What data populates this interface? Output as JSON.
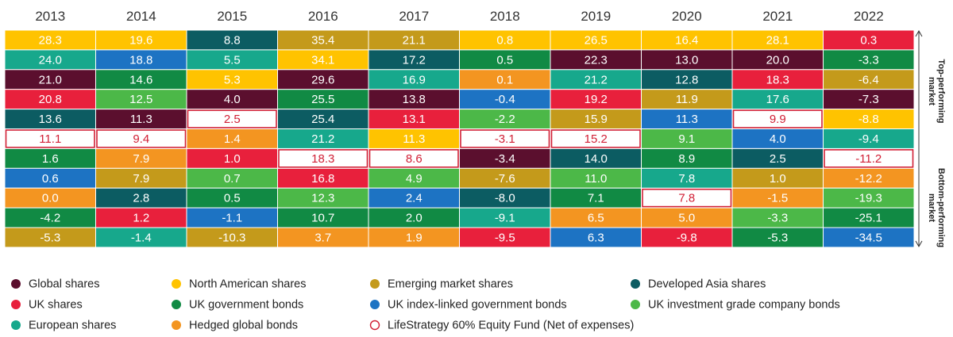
{
  "colors": {
    "global": "#5b0f2e",
    "na": "#ffc300",
    "em": "#c49a1b",
    "dasia": "#0c5c62",
    "uk": "#e8203c",
    "ukgov": "#118a44",
    "ukil": "#1d73c3",
    "ukig": "#4cb848",
    "eu": "#17a88c",
    "hedged": "#f39521",
    "fund": "#ffffff",
    "fund_border": "#d11f35"
  },
  "chart_data": {
    "type": "table",
    "title": "",
    "side_labels": {
      "top": "Top-performing market",
      "bottom": "Bottom-performing market"
    },
    "years": [
      "2013",
      "2014",
      "2015",
      "2016",
      "2017",
      "2018",
      "2019",
      "2020",
      "2021",
      "2022"
    ],
    "legend": [
      {
        "key": "global",
        "label": "Global shares",
        "symbol": "dot"
      },
      {
        "key": "na",
        "label": "North American shares",
        "symbol": "dot"
      },
      {
        "key": "em",
        "label": "Emerging market shares",
        "symbol": "dot"
      },
      {
        "key": "dasia",
        "label": "Developed Asia shares",
        "symbol": "dot"
      },
      {
        "key": "uk",
        "label": "UK shares",
        "symbol": "dot"
      },
      {
        "key": "ukgov",
        "label": "UK government bonds",
        "symbol": "dot"
      },
      {
        "key": "ukil",
        "label": "UK index-linked government bonds",
        "symbol": "dot"
      },
      {
        "key": "ukig",
        "label": "UK investment grade company bonds",
        "symbol": "dot"
      },
      {
        "key": "eu",
        "label": "European shares",
        "symbol": "dot"
      },
      {
        "key": "hedged",
        "label": "Hedged global bonds",
        "symbol": "dot"
      },
      {
        "key": "fund",
        "label": "LifeStrategy 60% Equity Fund (Net of expenses)",
        "symbol": "ring"
      }
    ],
    "columns": [
      {
        "year": "2013",
        "cells": [
          {
            "v": "28.3",
            "k": "na"
          },
          {
            "v": "24.0",
            "k": "eu"
          },
          {
            "v": "21.0",
            "k": "global"
          },
          {
            "v": "20.8",
            "k": "uk"
          },
          {
            "v": "13.6",
            "k": "dasia"
          },
          {
            "v": "11.1",
            "k": "fund"
          },
          {
            "v": "1.6",
            "k": "ukgov"
          },
          {
            "v": "0.6",
            "k": "ukil"
          },
          {
            "v": "0.0",
            "k": "hedged"
          },
          {
            "v": "-4.2",
            "k": "ukgov"
          },
          {
            "v": "-5.3",
            "k": "em"
          }
        ]
      },
      {
        "year": "2014",
        "cells": [
          {
            "v": "19.6",
            "k": "na"
          },
          {
            "v": "18.8",
            "k": "ukil"
          },
          {
            "v": "14.6",
            "k": "ukgov"
          },
          {
            "v": "12.5",
            "k": "ukig"
          },
          {
            "v": "11.3",
            "k": "global"
          },
          {
            "v": "9.4",
            "k": "fund"
          },
          {
            "v": "7.9",
            "k": "hedged"
          },
          {
            "v": "7.9",
            "k": "em"
          },
          {
            "v": "2.8",
            "k": "dasia"
          },
          {
            "v": "1.2",
            "k": "uk"
          },
          {
            "v": "-1.4",
            "k": "eu"
          }
        ]
      },
      {
        "year": "2015",
        "cells": [
          {
            "v": "8.8",
            "k": "dasia"
          },
          {
            "v": "5.5",
            "k": "eu"
          },
          {
            "v": "5.3",
            "k": "na"
          },
          {
            "v": "4.0",
            "k": "global"
          },
          {
            "v": "2.5",
            "k": "fund"
          },
          {
            "v": "1.4",
            "k": "hedged"
          },
          {
            "v": "1.0",
            "k": "uk"
          },
          {
            "v": "0.7",
            "k": "ukig"
          },
          {
            "v": "0.5",
            "k": "ukgov"
          },
          {
            "v": "-1.1",
            "k": "ukil"
          },
          {
            "v": "-10.3",
            "k": "em"
          }
        ]
      },
      {
        "year": "2016",
        "cells": [
          {
            "v": "35.4",
            "k": "em"
          },
          {
            "v": "34.1",
            "k": "na"
          },
          {
            "v": "29.6",
            "k": "global"
          },
          {
            "v": "25.5",
            "k": "ukgov"
          },
          {
            "v": "25.4",
            "k": "dasia"
          },
          {
            "v": "21.2",
            "k": "eu"
          },
          {
            "v": "18.3",
            "k": "fund"
          },
          {
            "v": "16.8",
            "k": "uk"
          },
          {
            "v": "12.3",
            "k": "ukig"
          },
          {
            "v": "10.7",
            "k": "ukgov"
          },
          {
            "v": "3.7",
            "k": "hedged"
          }
        ]
      },
      {
        "year": "2017",
        "cells": [
          {
            "v": "21.1",
            "k": "em"
          },
          {
            "v": "17.2",
            "k": "dasia"
          },
          {
            "v": "16.9",
            "k": "eu"
          },
          {
            "v": "13.8",
            "k": "global"
          },
          {
            "v": "13.1",
            "k": "uk"
          },
          {
            "v": "11.3",
            "k": "na"
          },
          {
            "v": "8.6",
            "k": "fund"
          },
          {
            "v": "4.9",
            "k": "ukig"
          },
          {
            "v": "2.4",
            "k": "ukil"
          },
          {
            "v": "2.0",
            "k": "ukgov"
          },
          {
            "v": "1.9",
            "k": "hedged"
          }
        ]
      },
      {
        "year": "2018",
        "cells": [
          {
            "v": "0.8",
            "k": "na"
          },
          {
            "v": "0.5",
            "k": "ukgov"
          },
          {
            "v": "0.1",
            "k": "hedged"
          },
          {
            "v": "-0.4",
            "k": "ukil"
          },
          {
            "v": "-2.2",
            "k": "ukig"
          },
          {
            "v": "-3.1",
            "k": "fund"
          },
          {
            "v": "-3.4",
            "k": "global"
          },
          {
            "v": "-7.6",
            "k": "em"
          },
          {
            "v": "-8.0",
            "k": "dasia"
          },
          {
            "v": "-9.1",
            "k": "eu"
          },
          {
            "v": "-9.5",
            "k": "uk"
          }
        ]
      },
      {
        "year": "2019",
        "cells": [
          {
            "v": "26.5",
            "k": "na"
          },
          {
            "v": "22.3",
            "k": "global"
          },
          {
            "v": "21.2",
            "k": "eu"
          },
          {
            "v": "19.2",
            "k": "uk"
          },
          {
            "v": "15.9",
            "k": "em"
          },
          {
            "v": "15.2",
            "k": "fund"
          },
          {
            "v": "14.0",
            "k": "dasia"
          },
          {
            "v": "11.0",
            "k": "ukig"
          },
          {
            "v": "7.1",
            "k": "ukgov"
          },
          {
            "v": "6.5",
            "k": "hedged"
          },
          {
            "v": "6.3",
            "k": "ukil"
          }
        ]
      },
      {
        "year": "2020",
        "cells": [
          {
            "v": "16.4",
            "k": "na"
          },
          {
            "v": "13.0",
            "k": "global"
          },
          {
            "v": "12.8",
            "k": "dasia"
          },
          {
            "v": "11.9",
            "k": "em"
          },
          {
            "v": "11.3",
            "k": "ukil"
          },
          {
            "v": "9.1",
            "k": "ukig"
          },
          {
            "v": "8.9",
            "k": "ukgov"
          },
          {
            "v": "7.8",
            "k": "eu"
          },
          {
            "v": "7.8",
            "k": "fund"
          },
          {
            "v": "5.0",
            "k": "hedged"
          },
          {
            "v": "-9.8",
            "k": "uk"
          }
        ]
      },
      {
        "year": "2021",
        "cells": [
          {
            "v": "28.1",
            "k": "na"
          },
          {
            "v": "20.0",
            "k": "global"
          },
          {
            "v": "18.3",
            "k": "uk"
          },
          {
            "v": "17.6",
            "k": "eu"
          },
          {
            "v": "9.9",
            "k": "fund"
          },
          {
            "v": "4.0",
            "k": "ukil"
          },
          {
            "v": "2.5",
            "k": "dasia"
          },
          {
            "v": "1.0",
            "k": "em"
          },
          {
            "v": "-1.5",
            "k": "hedged"
          },
          {
            "v": "-3.3",
            "k": "ukig"
          },
          {
            "v": "-5.3",
            "k": "ukgov"
          }
        ]
      },
      {
        "year": "2022",
        "cells": [
          {
            "v": "0.3",
            "k": "uk"
          },
          {
            "v": "-3.3",
            "k": "ukgov"
          },
          {
            "v": "-6.4",
            "k": "em"
          },
          {
            "v": "-7.3",
            "k": "global"
          },
          {
            "v": "-8.8",
            "k": "na"
          },
          {
            "v": "-9.4",
            "k": "eu"
          },
          {
            "v": "-11.2",
            "k": "fund"
          },
          {
            "v": "-12.2",
            "k": "hedged"
          },
          {
            "v": "-19.3",
            "k": "ukig"
          },
          {
            "v": "-25.1",
            "k": "ukgov"
          },
          {
            "v": "-34.5",
            "k": "ukil"
          }
        ]
      }
    ]
  }
}
